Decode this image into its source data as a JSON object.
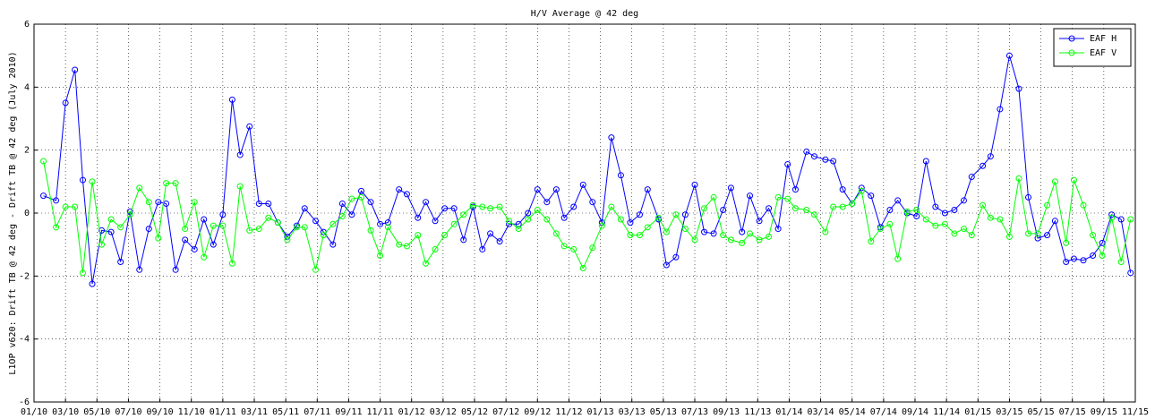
{
  "chart_data": {
    "type": "line",
    "title": "H/V Average @ 42 deg",
    "y_label": "L1OP v620: Drift TB @ 42 deg - Drift TB @ 42 deg (July 2010)",
    "x": [
      0.6,
      1.4,
      2.0,
      2.6,
      3.1,
      3.7,
      4.3,
      4.9,
      5.5,
      6.1,
      6.7,
      7.3,
      7.9,
      8.4,
      9.0,
      9.6,
      10.2,
      10.8,
      11.4,
      12.0,
      12.6,
      13.1,
      13.7,
      14.3,
      14.9,
      15.5,
      16.1,
      16.7,
      17.2,
      17.9,
      18.4,
      19.0,
      19.6,
      20.2,
      20.8,
      21.4,
      22.0,
      22.5,
      23.2,
      23.7,
      24.4,
      24.9,
      25.5,
      26.1,
      26.7,
      27.3,
      27.9,
      28.5,
      29.0,
      29.6,
      30.2,
      30.8,
      31.4,
      32.0,
      32.6,
      33.2,
      33.7,
      34.3,
      34.9,
      35.5,
      36.1,
      36.7,
      37.3,
      37.9,
      38.5,
      39.0,
      39.7,
      40.2,
      40.8,
      41.4,
      42.0,
      42.6,
      43.2,
      43.8,
      44.3,
      45.0,
      45.5,
      46.1,
      46.7,
      47.3,
      47.9,
      48.4,
      49.1,
      49.6,
      50.3,
      50.8,
      51.4,
      52.0,
      52.6,
      53.2,
      53.8,
      54.4,
      54.9,
      55.5,
      56.1,
      56.7,
      57.3,
      57.9,
      58.5,
      59.1,
      59.6,
      60.3,
      60.8,
      61.4,
      62.0,
      62.6,
      63.2,
      63.8,
      64.4,
      64.9,
      65.6,
      66.1,
      66.7,
      67.3,
      67.9,
      68.5,
      69.1,
      69.7
    ],
    "series": [
      {
        "name": "EAF H",
        "color": "#0000ff",
        "values": [
          0.55,
          0.4,
          3.5,
          4.55,
          1.05,
          -2.25,
          -0.55,
          -0.6,
          -1.55,
          0.05,
          -1.8,
          -0.5,
          0.35,
          0.3,
          -1.8,
          -0.85,
          -1.15,
          -0.2,
          -1.0,
          -0.05,
          3.6,
          1.85,
          2.75,
          0.3,
          0.3,
          -0.3,
          -0.75,
          -0.4,
          0.15,
          -0.25,
          -0.6,
          -1.0,
          0.3,
          -0.05,
          0.7,
          0.35,
          -0.35,
          -0.3,
          0.75,
          0.6,
          -0.15,
          0.35,
          -0.25,
          0.15,
          0.15,
          -0.85,
          0.2,
          -1.15,
          -0.65,
          -0.9,
          -0.35,
          -0.35,
          0.0,
          0.75,
          0.35,
          0.75,
          -0.15,
          0.2,
          0.9,
          0.35,
          -0.3,
          2.4,
          1.2,
          -0.3,
          -0.05,
          0.75,
          -0.2,
          -1.65,
          -1.4,
          -0.05,
          0.9,
          -0.6,
          -0.65,
          0.1,
          0.8,
          -0.6,
          0.55,
          -0.25,
          0.15,
          -0.5,
          1.55,
          0.75,
          1.95,
          1.8,
          1.7,
          1.65,
          0.75,
          0.3,
          0.8,
          0.55,
          -0.45,
          0.1,
          0.4,
          0.0,
          -0.1,
          1.65,
          0.2,
          0.0,
          0.1,
          0.4,
          1.15,
          1.5,
          1.8,
          3.3,
          5.0,
          3.95,
          0.5,
          -0.8,
          -0.7,
          -0.25,
          -1.55,
          -1.45,
          -1.5,
          -1.35,
          -0.95,
          -0.05,
          -0.2,
          -1.9
        ]
      },
      {
        "name": "EAF V",
        "color": "#00ff00",
        "values": [
          1.65,
          -0.45,
          0.2,
          0.2,
          -1.9,
          1.0,
          -1.0,
          -0.2,
          -0.45,
          -0.05,
          0.8,
          0.35,
          -0.8,
          0.95,
          0.95,
          -0.5,
          0.35,
          -1.4,
          -0.4,
          -0.4,
          -1.6,
          0.85,
          -0.55,
          -0.5,
          -0.15,
          -0.3,
          -0.85,
          -0.45,
          -0.45,
          -1.8,
          -0.7,
          -0.35,
          -0.1,
          0.45,
          0.5,
          -0.55,
          -1.35,
          -0.45,
          -1.0,
          -1.05,
          -0.7,
          -1.6,
          -1.15,
          -0.7,
          -0.35,
          -0.05,
          0.25,
          0.2,
          0.15,
          0.2,
          -0.25,
          -0.5,
          -0.2,
          0.1,
          -0.2,
          -0.65,
          -1.05,
          -1.15,
          -1.75,
          -1.1,
          -0.4,
          0.2,
          -0.2,
          -0.7,
          -0.7,
          -0.45,
          -0.15,
          -0.6,
          -0.05,
          -0.5,
          -0.85,
          0.15,
          0.5,
          -0.7,
          -0.85,
          -0.95,
          -0.65,
          -0.85,
          -0.75,
          0.5,
          0.45,
          0.15,
          0.1,
          -0.05,
          -0.6,
          0.2,
          0.2,
          0.3,
          0.7,
          -0.9,
          -0.5,
          -0.35,
          -1.45,
          0.05,
          0.1,
          -0.2,
          -0.4,
          -0.35,
          -0.65,
          -0.5,
          -0.7,
          0.25,
          -0.15,
          -0.2,
          -0.75,
          1.1,
          -0.65,
          -0.65,
          0.25,
          1.0,
          -0.95,
          1.05,
          0.25,
          -0.7,
          -1.35,
          -0.15,
          -1.55,
          -0.2
        ]
      }
    ],
    "xlim": [
      0,
      70
    ],
    "xticks": [
      {
        "value": 0,
        "label": "01/10"
      },
      {
        "value": 2,
        "label": "03/10"
      },
      {
        "value": 4,
        "label": "05/10"
      },
      {
        "value": 6,
        "label": "07/10"
      },
      {
        "value": 8,
        "label": "09/10"
      },
      {
        "value": 10,
        "label": "11/10"
      },
      {
        "value": 12,
        "label": "01/11"
      },
      {
        "value": 14,
        "label": "03/11"
      },
      {
        "value": 16,
        "label": "05/11"
      },
      {
        "value": 18,
        "label": "07/11"
      },
      {
        "value": 20,
        "label": "09/11"
      },
      {
        "value": 22,
        "label": "11/11"
      },
      {
        "value": 24,
        "label": "01/12"
      },
      {
        "value": 26,
        "label": "03/12"
      },
      {
        "value": 28,
        "label": "05/12"
      },
      {
        "value": 30,
        "label": "07/12"
      },
      {
        "value": 32,
        "label": "09/12"
      },
      {
        "value": 34,
        "label": "11/12"
      },
      {
        "value": 36,
        "label": "01/13"
      },
      {
        "value": 38,
        "label": "03/13"
      },
      {
        "value": 40,
        "label": "05/13"
      },
      {
        "value": 42,
        "label": "07/13"
      },
      {
        "value": 44,
        "label": "09/13"
      },
      {
        "value": 46,
        "label": "11/13"
      },
      {
        "value": 48,
        "label": "01/14"
      },
      {
        "value": 50,
        "label": "03/14"
      },
      {
        "value": 52,
        "label": "05/14"
      },
      {
        "value": 54,
        "label": "07/14"
      },
      {
        "value": 56,
        "label": "09/14"
      },
      {
        "value": 58,
        "label": "11/14"
      },
      {
        "value": 60,
        "label": "01/15"
      },
      {
        "value": 62,
        "label": "03/15"
      },
      {
        "value": 64,
        "label": "05/15"
      },
      {
        "value": 66,
        "label": "07/15"
      },
      {
        "value": 68,
        "label": "09/15"
      },
      {
        "value": 70,
        "label": "11/15"
      }
    ],
    "ylim": [
      -6,
      6
    ],
    "yticks": [
      -6,
      -4,
      -2,
      0,
      2,
      4,
      6
    ],
    "grid": true,
    "legend": "top-right"
  }
}
